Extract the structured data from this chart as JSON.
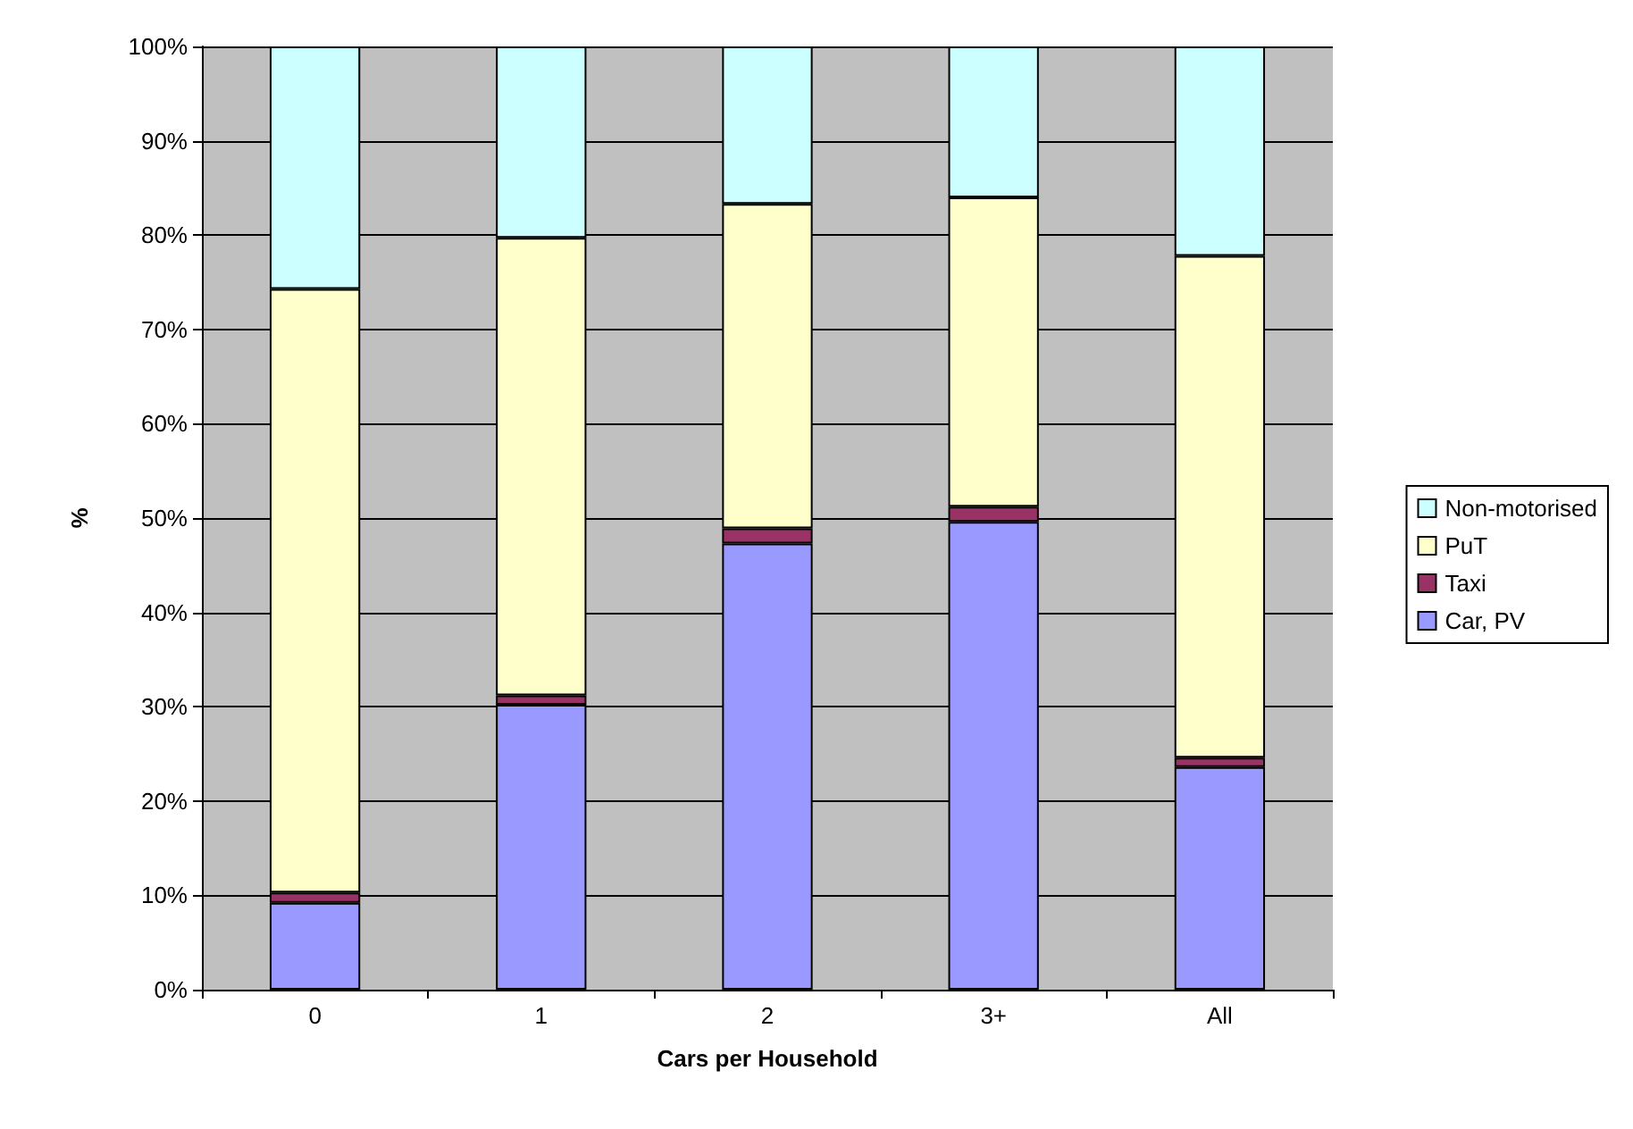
{
  "chart_data": {
    "type": "bar",
    "stacked": true,
    "xlabel": "Cars per Household",
    "ylabel": "%",
    "categories": [
      "0",
      "1",
      "2",
      "3+",
      "All"
    ],
    "series": [
      {
        "name": "Car, PV",
        "color": "#9999ff",
        "values": [
          9.2,
          30.2,
          47.3,
          49.6,
          23.6
        ]
      },
      {
        "name": "Taxi",
        "color": "#993366",
        "values": [
          1.1,
          1.0,
          1.6,
          1.6,
          1.0
        ]
      },
      {
        "name": "PuT",
        "color": "#ffffcc",
        "values": [
          64.0,
          48.5,
          34.4,
          32.8,
          53.2
        ]
      },
      {
        "name": "Non-motorised",
        "color": "#ccffff",
        "values": [
          25.7,
          20.3,
          16.7,
          16.0,
          22.2
        ]
      }
    ],
    "ylim": [
      0,
      100
    ],
    "yticks": [
      {
        "value": 0,
        "label": "0%"
      },
      {
        "value": 10,
        "label": "10%"
      },
      {
        "value": 20,
        "label": "20%"
      },
      {
        "value": 30,
        "label": "30%"
      },
      {
        "value": 40,
        "label": "40%"
      },
      {
        "value": 50,
        "label": "50%"
      },
      {
        "value": 60,
        "label": "60%"
      },
      {
        "value": 70,
        "label": "70%"
      },
      {
        "value": 80,
        "label": "80%"
      },
      {
        "value": 90,
        "label": "90%"
      },
      {
        "value": 100,
        "label": "100%"
      }
    ],
    "grid": "y",
    "legend": "right"
  }
}
